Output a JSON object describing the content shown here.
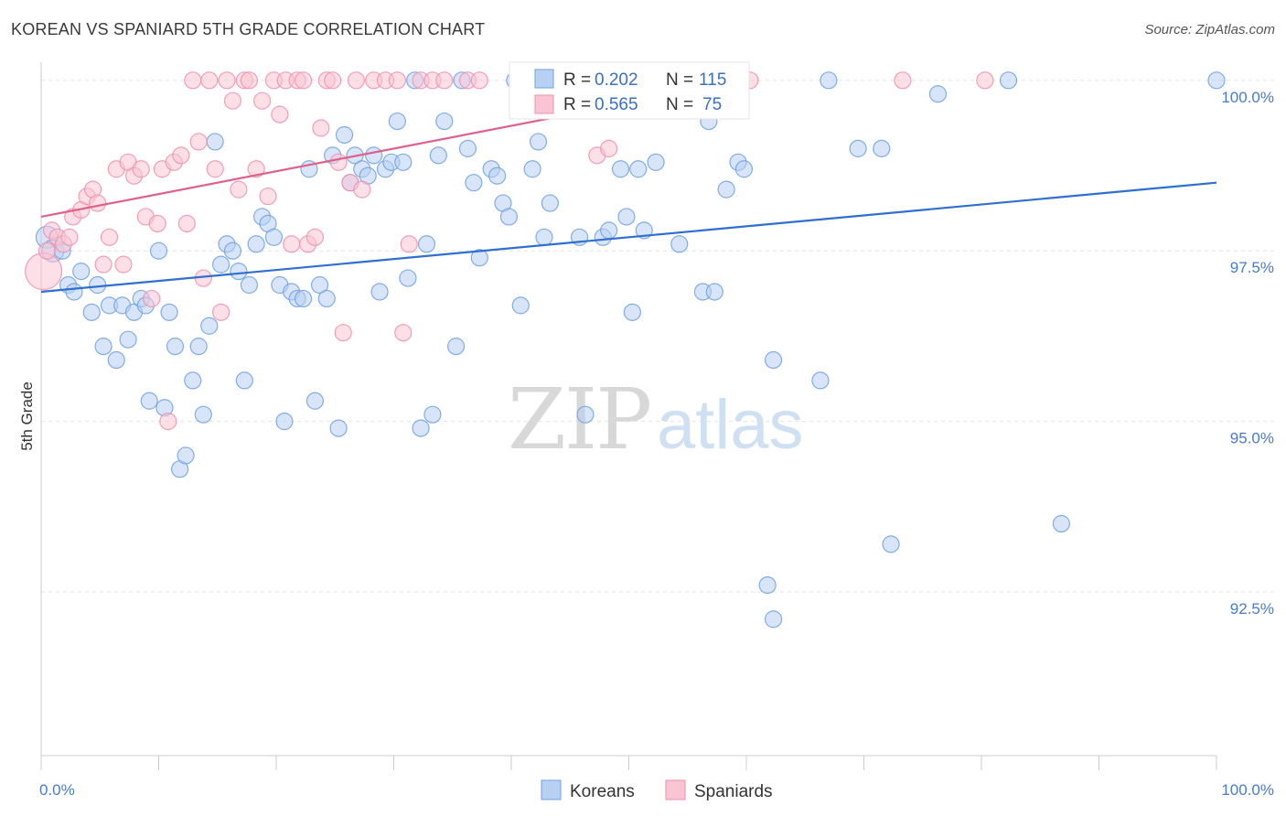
{
  "title": "KOREAN VS SPANIARD 5TH GRADE CORRELATION CHART",
  "source": "Source: ZipAtlas.com",
  "chart_data": {
    "type": "scatter",
    "title": "KOREAN VS SPANIARD 5TH GRADE CORRELATION CHART",
    "xlabel": "",
    "ylabel": "5th Grade",
    "xlim": [
      0,
      100
    ],
    "ylim": [
      90.1,
      100.4
    ],
    "x_tick_labels": [
      "0.0%",
      "100.0%"
    ],
    "y_ticks": [
      92.5,
      95.0,
      97.5,
      100.0
    ],
    "y_tick_labels": [
      "92.5%",
      "95.0%",
      "97.5%",
      "100.0%"
    ],
    "grid": true,
    "legend": {
      "position": "top-center",
      "entries": [
        {
          "r_label": "R =",
          "r_value": "0.202",
          "n_label": "N =",
          "n_value": "115"
        },
        {
          "r_label": "R =",
          "r_value": "0.565",
          "n_label": "N =",
          "n_value": "75"
        }
      ]
    },
    "series": [
      {
        "name": "Koreans",
        "color": "#6fa0e0",
        "fill": "#b8d0f2",
        "trend_color": "#2f6fcf",
        "trend": {
          "x": [
            0,
            100
          ],
          "y": [
            96.9,
            98.5
          ]
        },
        "points": [
          [
            0.5,
            97.7
          ],
          [
            1.0,
            97.5
          ],
          [
            1.8,
            97.5
          ],
          [
            2.3,
            97.0
          ],
          [
            2.8,
            96.9
          ],
          [
            3.4,
            97.2
          ],
          [
            4.3,
            96.6
          ],
          [
            4.8,
            97.0
          ],
          [
            5.3,
            96.1
          ],
          [
            5.8,
            96.7
          ],
          [
            6.4,
            95.9
          ],
          [
            6.9,
            96.7
          ],
          [
            7.4,
            96.2
          ],
          [
            7.9,
            96.6
          ],
          [
            8.5,
            96.8
          ],
          [
            8.9,
            96.7
          ],
          [
            9.2,
            95.3
          ],
          [
            10.0,
            97.5
          ],
          [
            10.5,
            95.2
          ],
          [
            10.9,
            96.6
          ],
          [
            11.4,
            96.1
          ],
          [
            11.8,
            94.3
          ],
          [
            12.3,
            94.5
          ],
          [
            12.9,
            95.6
          ],
          [
            13.4,
            96.1
          ],
          [
            13.8,
            95.1
          ],
          [
            14.3,
            96.4
          ],
          [
            14.8,
            99.1
          ],
          [
            15.3,
            97.3
          ],
          [
            15.8,
            97.6
          ],
          [
            16.3,
            97.5
          ],
          [
            16.8,
            97.2
          ],
          [
            17.3,
            95.6
          ],
          [
            17.7,
            97.0
          ],
          [
            18.3,
            97.6
          ],
          [
            18.8,
            98.0
          ],
          [
            19.3,
            97.9
          ],
          [
            19.8,
            97.7
          ],
          [
            20.3,
            97.0
          ],
          [
            20.7,
            95.0
          ],
          [
            21.3,
            96.9
          ],
          [
            21.8,
            96.8
          ],
          [
            22.3,
            96.8
          ],
          [
            22.8,
            98.7
          ],
          [
            23.3,
            95.3
          ],
          [
            23.7,
            97.0
          ],
          [
            24.3,
            96.8
          ],
          [
            24.8,
            98.9
          ],
          [
            25.3,
            94.9
          ],
          [
            25.8,
            99.2
          ],
          [
            26.3,
            98.5
          ],
          [
            26.7,
            98.9
          ],
          [
            27.3,
            98.7
          ],
          [
            27.8,
            98.6
          ],
          [
            28.3,
            98.9
          ],
          [
            28.8,
            96.9
          ],
          [
            29.3,
            98.7
          ],
          [
            29.8,
            98.8
          ],
          [
            30.3,
            99.4
          ],
          [
            30.8,
            98.8
          ],
          [
            31.2,
            97.1
          ],
          [
            31.8,
            100.0
          ],
          [
            32.3,
            94.9
          ],
          [
            32.8,
            97.6
          ],
          [
            33.3,
            95.1
          ],
          [
            33.8,
            98.9
          ],
          [
            34.3,
            99.4
          ],
          [
            35.3,
            96.1
          ],
          [
            35.8,
            100.0
          ],
          [
            36.3,
            99.0
          ],
          [
            36.8,
            98.5
          ],
          [
            37.3,
            97.4
          ],
          [
            38.3,
            98.7
          ],
          [
            38.8,
            98.6
          ],
          [
            39.3,
            98.2
          ],
          [
            39.8,
            98.0
          ],
          [
            40.3,
            100.0
          ],
          [
            40.8,
            96.7
          ],
          [
            41.3,
            100.0
          ],
          [
            41.8,
            98.7
          ],
          [
            42.3,
            99.1
          ],
          [
            42.8,
            97.7
          ],
          [
            43.3,
            98.2
          ],
          [
            44.3,
            100.0
          ],
          [
            45.3,
            100.0
          ],
          [
            45.8,
            97.7
          ],
          [
            46.3,
            95.1
          ],
          [
            47.3,
            100.0
          ],
          [
            47.8,
            97.7
          ],
          [
            48.3,
            97.8
          ],
          [
            49.3,
            98.7
          ],
          [
            49.8,
            98.0
          ],
          [
            50.3,
            96.6
          ],
          [
            50.8,
            98.7
          ],
          [
            51.3,
            97.8
          ],
          [
            52.3,
            98.8
          ],
          [
            54.3,
            97.6
          ],
          [
            56.3,
            96.9
          ],
          [
            56.8,
            99.4
          ],
          [
            57.3,
            96.9
          ],
          [
            58.3,
            98.4
          ],
          [
            59.3,
            98.8
          ],
          [
            59.8,
            98.7
          ],
          [
            62.3,
            95.9
          ],
          [
            66.3,
            95.6
          ],
          [
            67.0,
            100.0
          ],
          [
            69.5,
            99.0
          ],
          [
            71.5,
            99.0
          ],
          [
            72.3,
            93.2
          ],
          [
            76.3,
            99.8
          ],
          [
            82.3,
            100.0
          ],
          [
            86.8,
            93.5
          ],
          [
            100.0,
            100.0
          ],
          [
            61.8,
            92.6
          ],
          [
            62.3,
            92.1
          ]
        ]
      },
      {
        "name": "Spaniards",
        "color": "#f08fae",
        "fill": "#f9c4d4",
        "trend_color": "#e0608c",
        "trend": {
          "x": [
            0,
            60
          ],
          "y": [
            98.0,
            100.0
          ]
        },
        "points": [
          [
            0.2,
            97.2
          ],
          [
            0.5,
            97.5
          ],
          [
            0.9,
            97.8
          ],
          [
            1.4,
            97.7
          ],
          [
            1.9,
            97.6
          ],
          [
            2.4,
            97.7
          ],
          [
            2.7,
            98.0
          ],
          [
            3.4,
            98.1
          ],
          [
            3.9,
            98.3
          ],
          [
            4.4,
            98.4
          ],
          [
            4.8,
            98.2
          ],
          [
            5.3,
            97.3
          ],
          [
            5.8,
            97.7
          ],
          [
            6.4,
            98.7
          ],
          [
            7.0,
            97.3
          ],
          [
            7.4,
            98.8
          ],
          [
            7.9,
            98.6
          ],
          [
            8.5,
            98.7
          ],
          [
            8.9,
            98.0
          ],
          [
            9.4,
            96.8
          ],
          [
            9.9,
            97.9
          ],
          [
            10.3,
            98.7
          ],
          [
            10.8,
            95.0
          ],
          [
            11.3,
            98.8
          ],
          [
            11.9,
            98.9
          ],
          [
            12.4,
            97.9
          ],
          [
            12.9,
            100.0
          ],
          [
            13.4,
            99.1
          ],
          [
            13.8,
            97.1
          ],
          [
            14.3,
            100.0
          ],
          [
            14.8,
            98.7
          ],
          [
            15.3,
            96.6
          ],
          [
            15.8,
            100.0
          ],
          [
            16.3,
            99.7
          ],
          [
            16.8,
            98.4
          ],
          [
            17.3,
            100.0
          ],
          [
            17.7,
            100.0
          ],
          [
            18.3,
            98.7
          ],
          [
            18.8,
            99.7
          ],
          [
            19.3,
            98.3
          ],
          [
            19.8,
            100.0
          ],
          [
            20.3,
            99.5
          ],
          [
            20.8,
            100.0
          ],
          [
            21.3,
            97.6
          ],
          [
            21.8,
            100.0
          ],
          [
            22.3,
            100.0
          ],
          [
            22.7,
            97.6
          ],
          [
            23.3,
            97.7
          ],
          [
            23.8,
            99.3
          ],
          [
            24.3,
            100.0
          ],
          [
            24.8,
            100.0
          ],
          [
            25.3,
            98.8
          ],
          [
            25.7,
            96.3
          ],
          [
            26.3,
            98.5
          ],
          [
            26.8,
            100.0
          ],
          [
            27.3,
            98.4
          ],
          [
            28.3,
            100.0
          ],
          [
            29.3,
            100.0
          ],
          [
            30.3,
            100.0
          ],
          [
            30.8,
            96.3
          ],
          [
            31.3,
            97.6
          ],
          [
            32.3,
            100.0
          ],
          [
            33.3,
            100.0
          ],
          [
            34.3,
            100.0
          ],
          [
            36.3,
            100.0
          ],
          [
            37.3,
            100.0
          ],
          [
            41.3,
            100.0
          ],
          [
            45.3,
            100.0
          ],
          [
            47.3,
            98.9
          ],
          [
            48.3,
            99.0
          ],
          [
            50.3,
            100.0
          ],
          [
            52.3,
            100.0
          ],
          [
            60.3,
            100.0
          ],
          [
            73.3,
            100.0
          ],
          [
            80.3,
            100.0
          ]
        ]
      }
    ]
  }
}
